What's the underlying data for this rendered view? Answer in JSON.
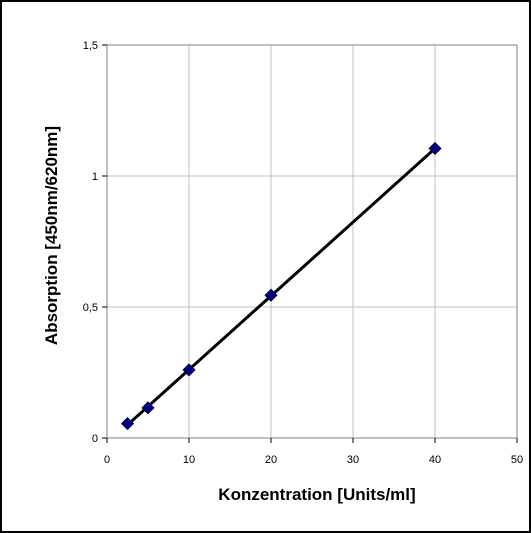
{
  "chart_data": {
    "type": "scatter",
    "title": "",
    "xlabel": "Konzentration [Units/ml]",
    "ylabel": "Absorption [450nm/620nm]",
    "xlim": [
      0,
      50
    ],
    "ylim": [
      0,
      1.5
    ],
    "x_ticks": [
      0,
      10,
      20,
      30,
      40,
      50
    ],
    "y_ticks": [
      0,
      0.5,
      1,
      1.5
    ],
    "x_tick_labels": [
      "0",
      "10",
      "20",
      "30",
      "40",
      "50"
    ],
    "y_tick_labels": [
      "0",
      "0,5",
      "1",
      "1,5"
    ],
    "grid": true,
    "legend": "none",
    "series": [
      {
        "marker": "diamond",
        "color": "#000080",
        "x": [
          2.5,
          5,
          10,
          20,
          40
        ],
        "y": [
          0.055,
          0.115,
          0.26,
          0.545,
          1.105
        ]
      }
    ],
    "trendline": {
      "type": "linear",
      "color": "#000000",
      "x": [
        2.5,
        40
      ],
      "y": [
        0.05,
        1.105
      ]
    }
  }
}
